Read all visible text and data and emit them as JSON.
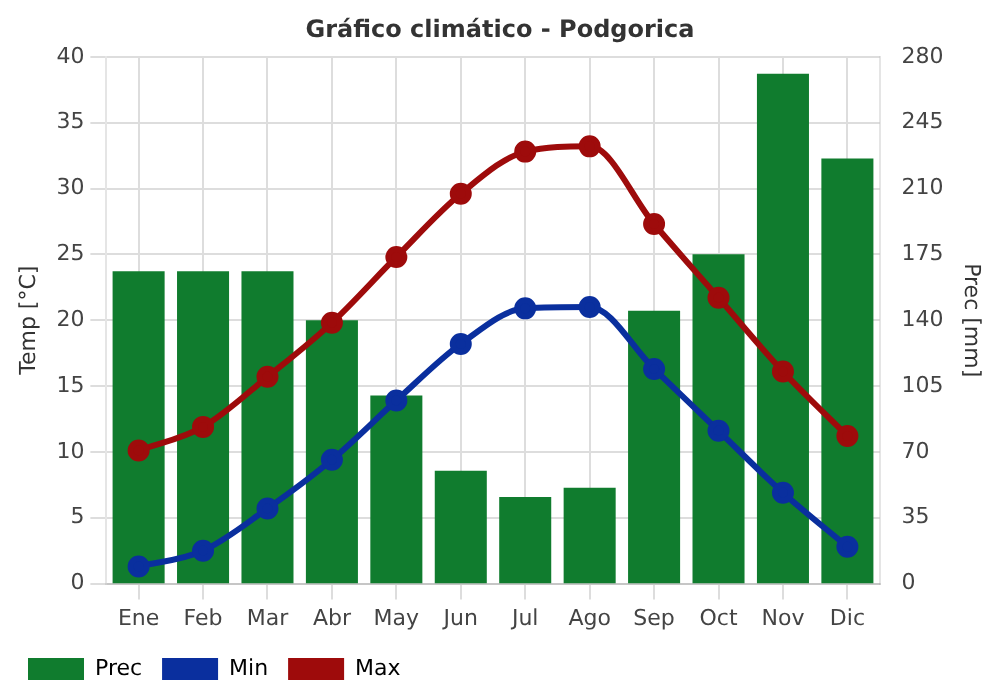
{
  "chart_data": {
    "type": "bar",
    "title": "Gráfico climático - Podgorica",
    "ylabel": "Temp [°C]",
    "y2label": "Prec [mm]",
    "categories": [
      "Ene",
      "Feb",
      "Mar",
      "Abr",
      "May",
      "Jun",
      "Jul",
      "Ago",
      "Sep",
      "Oct",
      "Nov",
      "Dic"
    ],
    "series": [
      {
        "name": "Prec",
        "axis": "y2",
        "color": "#107c2e",
        "values": [
          166,
          166,
          166,
          140,
          100,
          60,
          46,
          51,
          145,
          175,
          271,
          226
        ]
      },
      {
        "name": "Min",
        "type": "line",
        "color": "#0a2f9e",
        "values": [
          1.3,
          2.5,
          5.7,
          9.4,
          13.9,
          18.2,
          20.9,
          21.0,
          16.3,
          11.6,
          6.9,
          2.8
        ]
      },
      {
        "name": "Max",
        "type": "line",
        "color": "#9e0b0b",
        "values": [
          10.1,
          11.9,
          15.7,
          19.8,
          24.8,
          29.6,
          32.8,
          33.2,
          27.3,
          21.7,
          16.1,
          11.2
        ]
      }
    ],
    "ylim": [
      0,
      40
    ],
    "yticks": [
      0,
      5,
      10,
      15,
      20,
      25,
      30,
      35,
      40
    ],
    "y2lim": [
      0,
      280
    ],
    "y2ticks": [
      0,
      35,
      70,
      105,
      140,
      175,
      210,
      245,
      280
    ],
    "grid": true,
    "legend": "bottom",
    "marker": "circle",
    "line_style": "solid"
  }
}
